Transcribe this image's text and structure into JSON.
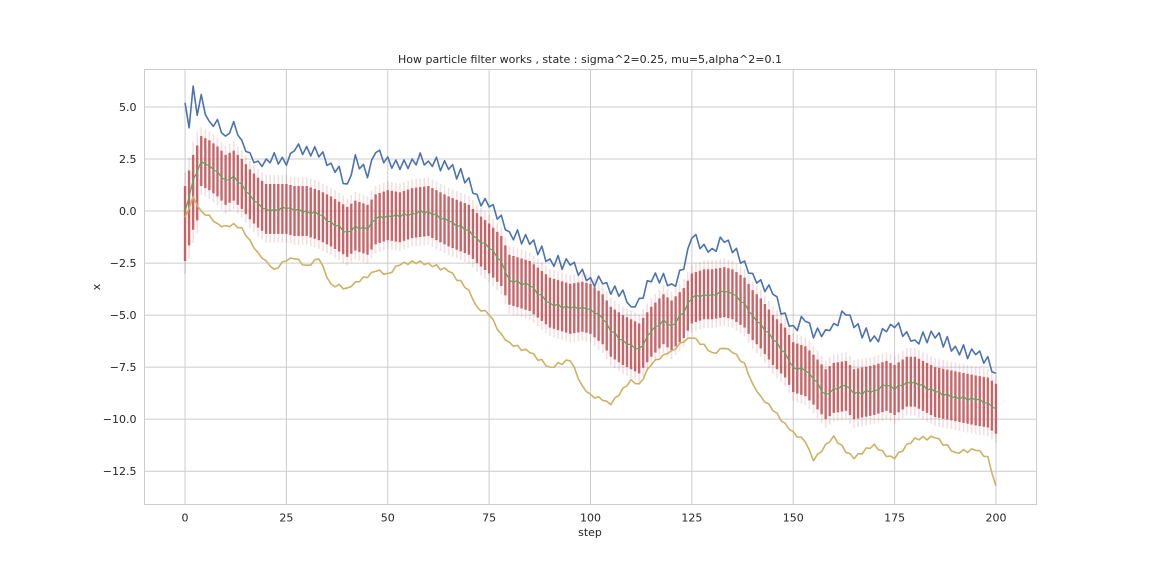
{
  "chart_data": {
    "type": "line",
    "title": "How particle filter works , state : sigma^2=0.25, mu=5,alpha^2=0.1",
    "xlabel": "step",
    "ylabel": "x",
    "xlim": [
      -10,
      210
    ],
    "ylim": [
      -14.1,
      6.8
    ],
    "xticks": [
      0,
      25,
      50,
      75,
      100,
      125,
      150,
      175,
      200
    ],
    "xtick_labels": [
      "0",
      "25",
      "50",
      "75",
      "100",
      "125",
      "150",
      "175",
      "200"
    ],
    "yticks": [
      5.0,
      2.5,
      0.0,
      -2.5,
      -5.0,
      -7.5,
      -10.0,
      -12.5
    ],
    "ytick_labels": [
      "5.0",
      "2.5",
      "0.0",
      "−2.5",
      "−5.0",
      "−7.5",
      "−10.0",
      "−12.5"
    ],
    "grid": true,
    "colors": {
      "upper": "#4c72b0",
      "lower": "#ccb264",
      "estimate": "#55a868",
      "particles": "#c44e52"
    },
    "series": [
      {
        "key": "upper",
        "anchors_x": [
          0,
          1,
          2,
          3,
          4,
          6,
          8,
          10,
          12,
          14,
          16,
          18,
          20,
          22,
          25,
          27,
          30,
          33,
          36,
          40,
          42,
          45,
          47,
          50,
          53,
          56,
          60,
          65,
          70,
          72,
          75,
          78,
          80,
          85,
          90,
          95,
          98,
          100,
          103,
          105,
          108,
          110,
          112,
          115,
          118,
          120,
          123,
          125,
          128,
          130,
          133,
          135,
          138,
          140,
          142,
          145,
          148,
          150,
          153,
          155,
          158,
          160,
          163,
          165,
          170,
          173,
          175,
          178,
          180,
          185,
          190,
          195,
          198,
          200
        ],
        "anchors_y": [
          5.2,
          4.0,
          6.0,
          4.6,
          5.6,
          4.3,
          4.4,
          3.6,
          4.3,
          3.4,
          2.8,
          2.4,
          2.5,
          2.8,
          2.2,
          2.9,
          3.1,
          2.6,
          2.3,
          1.3,
          2.7,
          1.6,
          2.8,
          2.6,
          2.0,
          2.5,
          2.4,
          2.0,
          1.6,
          0.8,
          0.2,
          -0.2,
          -1.0,
          -1.6,
          -2.3,
          -2.6,
          -2.8,
          -3.2,
          -3.5,
          -4.0,
          -3.8,
          -4.6,
          -4.2,
          -3.4,
          -3.0,
          -3.5,
          -2.8,
          -1.3,
          -1.6,
          -1.8,
          -1.5,
          -2.0,
          -2.4,
          -3.0,
          -3.3,
          -4.0,
          -4.9,
          -5.5,
          -5.3,
          -6.1,
          -5.7,
          -5.4,
          -5.0,
          -5.6,
          -6.0,
          -5.8,
          -5.6,
          -5.8,
          -6.2,
          -6.1,
          -6.5,
          -6.9,
          -7.0,
          -7.8
        ]
      },
      {
        "key": "estimate",
        "anchors_x": [
          0,
          2,
          4,
          6,
          8,
          10,
          12,
          14,
          16,
          18,
          20,
          22,
          25,
          27,
          30,
          33,
          36,
          40,
          42,
          45,
          47,
          50,
          53,
          56,
          60,
          65,
          70,
          72,
          75,
          78,
          80,
          85,
          90,
          95,
          98,
          100,
          103,
          105,
          108,
          110,
          112,
          115,
          118,
          120,
          123,
          125,
          128,
          130,
          133,
          135,
          138,
          140,
          142,
          145,
          148,
          150,
          153,
          155,
          158,
          160,
          163,
          165,
          170,
          173,
          175,
          178,
          180,
          185,
          190,
          195,
          198,
          200
        ],
        "anchors_y": [
          0.0,
          1.5,
          2.4,
          2.2,
          1.9,
          1.5,
          1.7,
          1.3,
          0.8,
          0.4,
          0.1,
          0.1,
          0.1,
          0.0,
          0.0,
          -0.2,
          -0.5,
          -1.0,
          -0.7,
          -0.9,
          -0.4,
          -0.2,
          -0.3,
          -0.1,
          0.0,
          -0.5,
          -0.9,
          -1.3,
          -1.8,
          -2.4,
          -3.3,
          -3.6,
          -4.4,
          -4.7,
          -4.6,
          -4.7,
          -5.2,
          -5.8,
          -6.2,
          -6.4,
          -6.6,
          -5.8,
          -5.2,
          -5.5,
          -4.9,
          -4.2,
          -4.0,
          -4.0,
          -3.9,
          -4.0,
          -4.4,
          -5.0,
          -5.4,
          -6.2,
          -6.8,
          -7.5,
          -7.7,
          -8.1,
          -8.8,
          -8.5,
          -8.4,
          -8.8,
          -8.6,
          -8.4,
          -8.6,
          -8.2,
          -8.2,
          -8.7,
          -8.9,
          -9.1,
          -9.2,
          -9.5
        ]
      },
      {
        "key": "lower",
        "anchors_x": [
          0,
          2,
          4,
          6,
          8,
          10,
          12,
          14,
          16,
          18,
          20,
          22,
          25,
          27,
          30,
          33,
          36,
          40,
          42,
          45,
          47,
          50,
          53,
          56,
          60,
          65,
          70,
          72,
          75,
          78,
          80,
          85,
          90,
          95,
          98,
          100,
          103,
          105,
          108,
          110,
          112,
          115,
          118,
          120,
          123,
          125,
          128,
          130,
          133,
          135,
          138,
          140,
          142,
          145,
          148,
          150,
          153,
          155,
          158,
          160,
          163,
          165,
          170,
          173,
          175,
          178,
          180,
          185,
          190,
          195,
          198,
          200
        ],
        "anchors_y": [
          -0.3,
          0.7,
          0.0,
          -0.2,
          -0.6,
          -0.7,
          -0.6,
          -0.8,
          -1.4,
          -2.0,
          -2.4,
          -2.8,
          -2.4,
          -2.3,
          -2.6,
          -2.3,
          -3.5,
          -3.7,
          -3.4,
          -3.2,
          -2.9,
          -3.0,
          -2.6,
          -2.4,
          -2.5,
          -2.9,
          -3.8,
          -4.6,
          -5.0,
          -5.9,
          -6.3,
          -6.8,
          -7.5,
          -7.2,
          -8.4,
          -8.8,
          -9.1,
          -9.3,
          -8.5,
          -8.1,
          -8.3,
          -7.4,
          -6.9,
          -6.7,
          -6.3,
          -6.1,
          -6.4,
          -6.8,
          -6.6,
          -6.8,
          -7.3,
          -8.3,
          -8.9,
          -9.6,
          -10.2,
          -10.6,
          -11.1,
          -12.0,
          -11.2,
          -10.8,
          -11.6,
          -11.9,
          -11.2,
          -11.8,
          -11.9,
          -11.2,
          -10.9,
          -10.9,
          -11.6,
          -11.5,
          -11.8,
          -13.2
        ]
      }
    ],
    "particles": {
      "step_range": [
        0,
        200
      ],
      "center_series": "estimate",
      "spread": 1.2
    }
  }
}
